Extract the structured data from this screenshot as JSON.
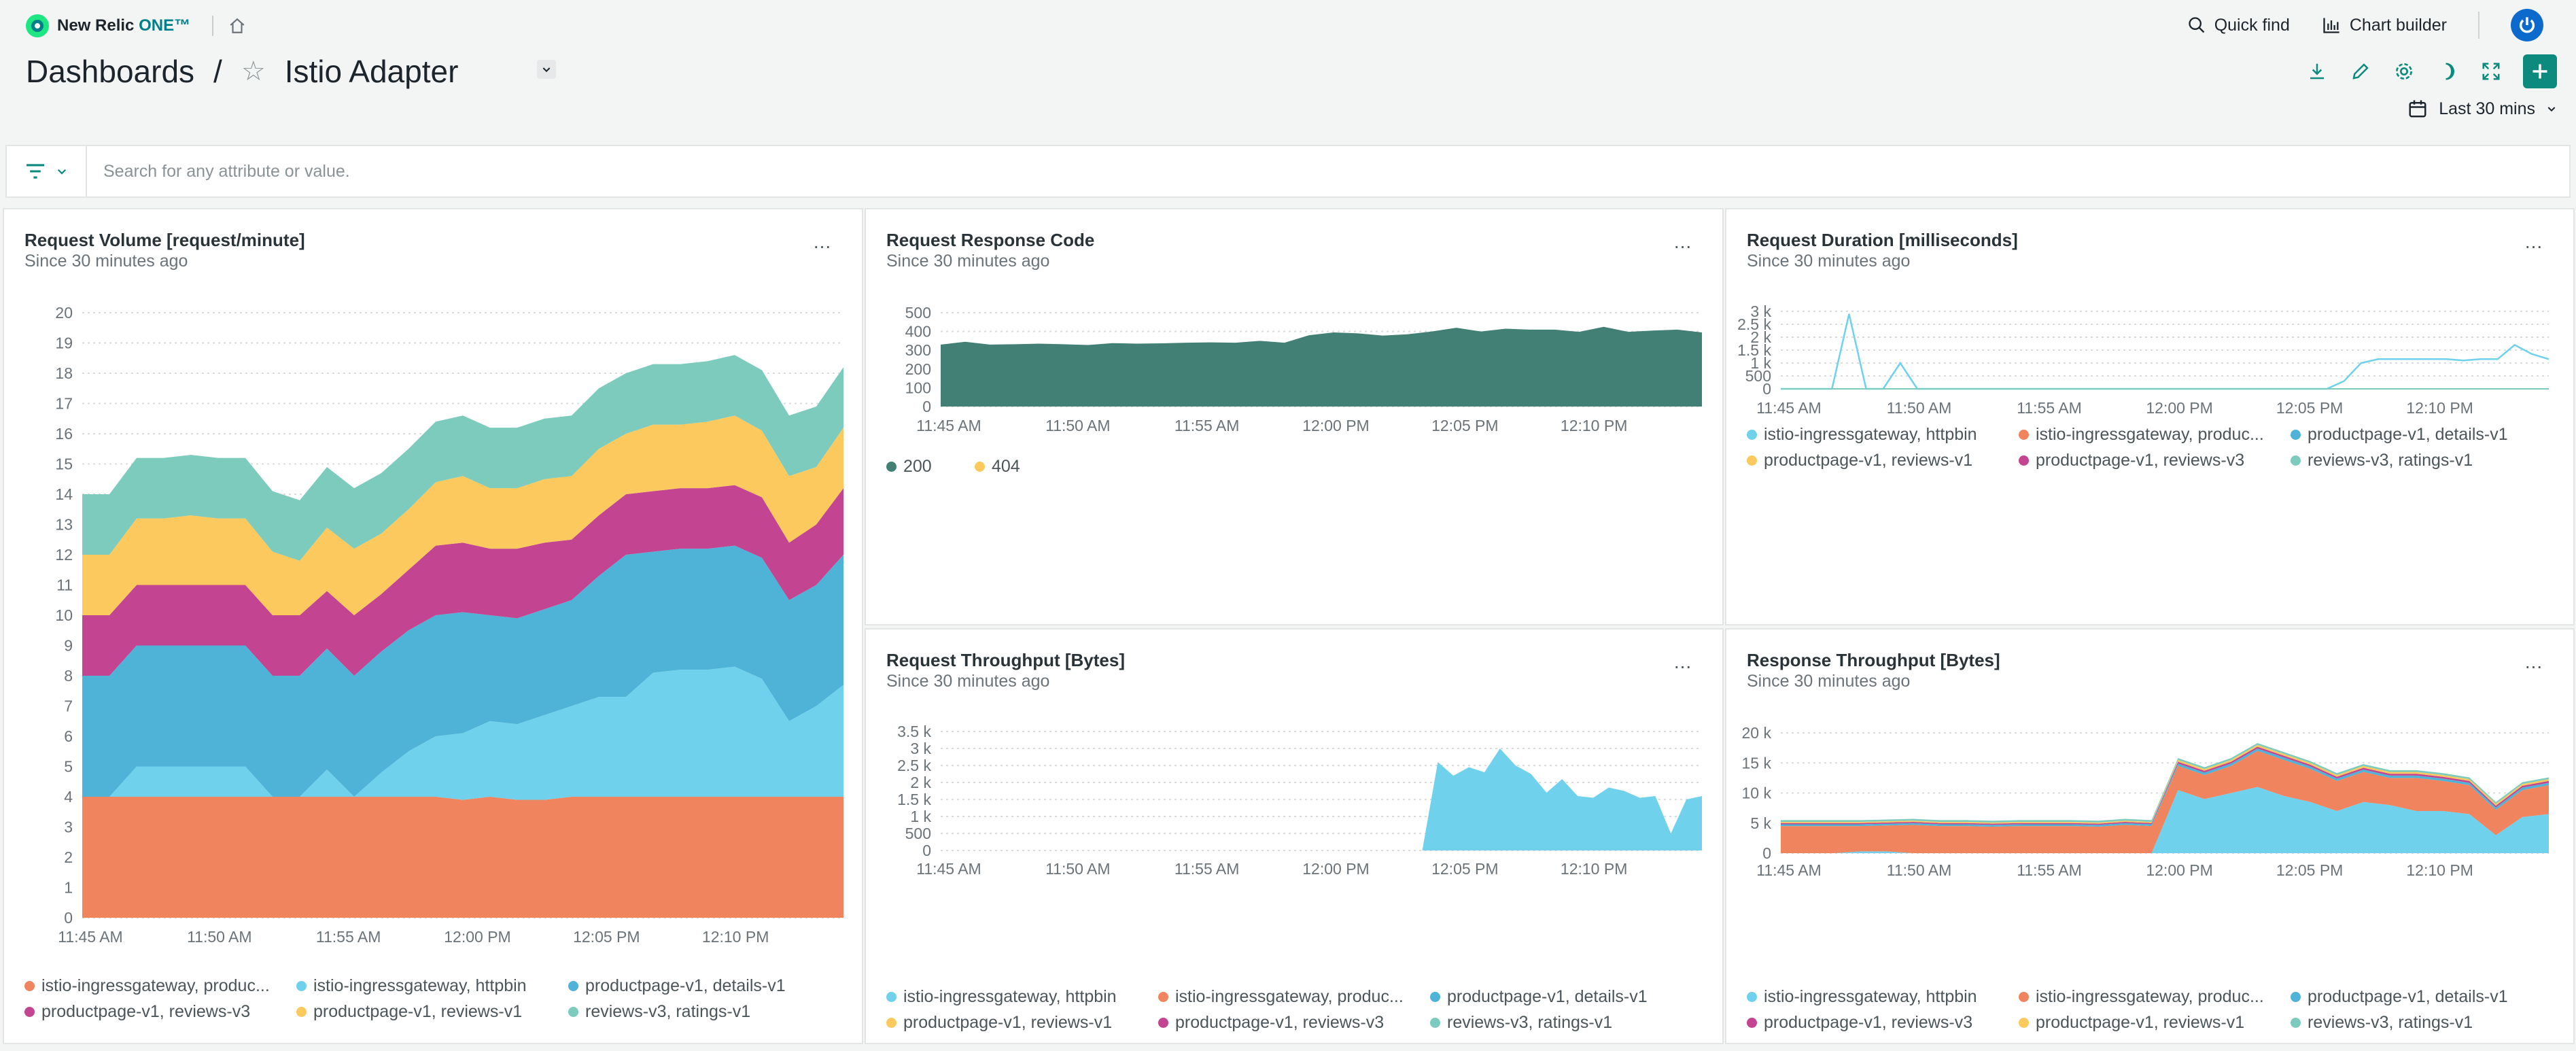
{
  "app": {
    "brand": "New Relic",
    "brand_suffix": "ONE™",
    "quick_find": "Quick find",
    "chart_builder": "Chart builder"
  },
  "breadcrumb": {
    "root": "Dashboards",
    "separator": "/",
    "title": "Istio Adapter"
  },
  "time_range": "Last 30 mins",
  "filter": {
    "placeholder": "Search for any attribute or value."
  },
  "icons": {
    "brand": "new-relic-logo",
    "home": "home-icon",
    "quick_find": "search-icon",
    "chart_builder": "chart-bar-icon",
    "power": "power-icon",
    "download": "download-icon",
    "edit": "pencil-icon",
    "settings": "gear-icon",
    "dark_mode": "moon-icon",
    "fullscreen": "expand-icon",
    "add": "plus-icon",
    "calendar": "calendar-icon",
    "filter": "filter-icon"
  },
  "colors": {
    "orange": "#f0845f",
    "light_blue": "#6fd1ec",
    "blue": "#4fb3d7",
    "magenta": "#c34490",
    "yellow": "#fbc95e",
    "teal": "#7ccbbd",
    "dark_teal": "#427f74",
    "accent": "#0c8a7d"
  },
  "times": [
    "11:45 AM",
    "11:50 AM",
    "11:55 AM",
    "12:00 PM",
    "12:05 PM",
    "12:10 PM"
  ],
  "cards": [
    {
      "id": "request-volume",
      "title": "Request Volume [request/minute]",
      "subtitle": "Since 30 minutes ago",
      "menu": "...",
      "chart_data": {
        "type": "area",
        "stacked": true,
        "ylim": [
          0,
          20
        ],
        "yticks": [
          "0",
          "1",
          "2",
          "3",
          "4",
          "5",
          "6",
          "7",
          "8",
          "9",
          "10",
          "11",
          "12",
          "13",
          "14",
          "15",
          "16",
          "17",
          "18",
          "19",
          "20"
        ],
        "x_labels": [
          "11:45 AM",
          "11:50 AM",
          "11:55 AM",
          "12:00 PM",
          "12:05 PM",
          "12:10 PM"
        ],
        "grid": true,
        "legend_position": "bottom",
        "series": [
          {
            "name": "istio-ingressgateway, produc...",
            "color": "#f0845f",
            "values": [
              4,
              4,
              4,
              4,
              4,
              4,
              4,
              4,
              4,
              4,
              4,
              4,
              4,
              4,
              3.9,
              4,
              3.9,
              3.9,
              4,
              4,
              4,
              4,
              4,
              4,
              4,
              4,
              4,
              4,
              4
            ]
          },
          {
            "name": "istio-ingressgateway, httpbin",
            "color": "#6fd1ec",
            "values": [
              0,
              0,
              1,
              1,
              1,
              1,
              1,
              0,
              0,
              0.9,
              0,
              0.8,
              1.5,
              2,
              2.2,
              2.5,
              2.5,
              2.8,
              3,
              3.3,
              3.3,
              4.1,
              4.2,
              4.2,
              4.3,
              3.9,
              2.5,
              3,
              3.7
            ]
          },
          {
            "name": "productpage-v1, details-v1",
            "color": "#4fb3d7",
            "values": [
              4,
              4,
              4,
              4,
              4,
              4,
              4,
              4,
              4,
              4,
              4,
              4,
              4,
              4,
              4,
              3.5,
              3.5,
              3.5,
              3.5,
              4,
              4.7,
              4,
              4,
              4,
              4,
              4,
              4,
              4,
              4.3
            ]
          },
          {
            "name": "productpage-v1, reviews-v3",
            "color": "#c34490",
            "values": [
              2,
              2,
              2,
              2,
              2,
              2,
              2,
              2,
              2,
              1.9,
              2,
              1.9,
              2,
              2.3,
              2.3,
              2.2,
              2.3,
              2.2,
              2,
              2,
              2,
              2,
              2,
              2,
              2,
              2,
              1.9,
              2,
              2.2
            ]
          },
          {
            "name": "productpage-v1, reviews-v1",
            "color": "#fbc95e",
            "values": [
              2,
              2,
              2.2,
              2.2,
              2.3,
              2.2,
              2.2,
              2.1,
              1.8,
              2.1,
              2.2,
              2,
              2,
              2.1,
              2.2,
              2,
              2,
              2.1,
              2.1,
              2.2,
              2,
              2.2,
              2.1,
              2.2,
              2.3,
              2.2,
              2.2,
              1.9,
              2
            ]
          },
          {
            "name": "reviews-v3, ratings-v1",
            "color": "#7ccbbd",
            "values": [
              2,
              2,
              2,
              2,
              2,
              2,
              2,
              2,
              2,
              2,
              2,
              2,
              2,
              2,
              2,
              2,
              2,
              2,
              2,
              2,
              2,
              2,
              2,
              2,
              2,
              2,
              2,
              2,
              2
            ]
          }
        ]
      }
    },
    {
      "id": "request-response-code",
      "title": "Request Response Code",
      "subtitle": "Since 30 minutes ago",
      "menu": "...",
      "chart_data": {
        "type": "area",
        "stacked": true,
        "ylim": [
          0,
          500
        ],
        "yticks": [
          "0",
          "100",
          "200",
          "300",
          "400",
          "500"
        ],
        "x_labels": [
          "11:45 AM",
          "11:50 AM",
          "11:55 AM",
          "12:00 PM",
          "12:05 PM",
          "12:10 PM"
        ],
        "grid": true,
        "legend_position": "bottom",
        "series": [
          {
            "name": "200",
            "color": "#427f74",
            "values": [
              330,
              345,
              330,
              332,
              335,
              332,
              328,
              338,
              335,
              337,
              340,
              342,
              340,
              350,
              340,
              380,
              395,
              390,
              378,
              385,
              400,
              420,
              400,
              415,
              410,
              410,
              398,
              425,
              398,
              405,
              410,
              395
            ]
          },
          {
            "name": "404",
            "color": "#fbc95e",
            "values": [
              0,
              0,
              0,
              0,
              0,
              0,
              0,
              0,
              0,
              0,
              0,
              0,
              0,
              0,
              0,
              0,
              0,
              0,
              0,
              0,
              0,
              0,
              0,
              0,
              0,
              0,
              0,
              0,
              0,
              0,
              0,
              0
            ]
          }
        ]
      }
    },
    {
      "id": "request-duration",
      "title": "Request Duration [milliseconds]",
      "subtitle": "Since 30 minutes ago",
      "menu": "...",
      "chart_data": {
        "type": "line",
        "ylim": [
          0,
          3000
        ],
        "yticks": [
          "0",
          "500",
          "1 k",
          "1.5 k",
          "2 k",
          "2.5 k",
          "3 k"
        ],
        "x_labels": [
          "11:45 AM",
          "11:50 AM",
          "11:55 AM",
          "12:00 PM",
          "12:05 PM",
          "12:10 PM"
        ],
        "grid": true,
        "legend_position": "bottom",
        "series": [
          {
            "name": "istio-ingressgateway, httpbin",
            "color": "#6fd1ec",
            "values": [
              0,
              0,
              0,
              0,
              2900,
              0,
              0,
              1000,
              0,
              0,
              0,
              0,
              0,
              0,
              0,
              0,
              0,
              0,
              0,
              0,
              0,
              0,
              0,
              0,
              0,
              0,
              0,
              0,
              0,
              0,
              0,
              0,
              0,
              300,
              1000,
              1150,
              1150,
              1150,
              1150,
              1150,
              1100,
              1150,
              1150,
              1700,
              1350,
              1150
            ]
          },
          {
            "name": "istio-ingressgateway, produc...",
            "color": "#f0845f",
            "values": []
          },
          {
            "name": "productpage-v1, details-v1",
            "color": "#4fb3d7",
            "values": []
          },
          {
            "name": "productpage-v1, reviews-v1",
            "color": "#fbc95e",
            "values": []
          },
          {
            "name": "productpage-v1, reviews-v3",
            "color": "#c34490",
            "values": []
          },
          {
            "name": "reviews-v3, ratings-v1",
            "color": "#7ccbbd",
            "values": []
          }
        ]
      }
    },
    {
      "id": "request-throughput",
      "title": "Request Throughput [Bytes]",
      "subtitle": "Since 30 minutes ago",
      "menu": "...",
      "chart_data": {
        "type": "area",
        "ylim": [
          0,
          3500
        ],
        "yticks": [
          "0",
          "500",
          "1 k",
          "1.5 k",
          "2 k",
          "2.5 k",
          "3 k",
          "3.5 k"
        ],
        "x_labels": [
          "11:45 AM",
          "11:50 AM",
          "11:55 AM",
          "12:00 PM",
          "12:05 PM",
          "12:10 PM"
        ],
        "grid": true,
        "legend_position": "bottom",
        "series": [
          {
            "name": "istio-ingressgateway, httpbin",
            "color": "#6fd1ec",
            "values": [
              0,
              0,
              0,
              0,
              0,
              0,
              0,
              0,
              0,
              0,
              0,
              0,
              0,
              0,
              0,
              0,
              0,
              0,
              0,
              0,
              0,
              0,
              0,
              0,
              0,
              0,
              0,
              0,
              0,
              0,
              0,
              0,
              2600,
              2200,
              2450,
              2300,
              3000,
              2500,
              2250,
              1700,
              2100,
              1600,
              1550,
              1850,
              1750,
              1550,
              1600,
              500,
              1500,
              1600
            ]
          },
          {
            "name": "istio-ingressgateway, produc...",
            "color": "#f0845f",
            "values": []
          },
          {
            "name": "productpage-v1, details-v1",
            "color": "#4fb3d7",
            "values": []
          },
          {
            "name": "productpage-v1, reviews-v1",
            "color": "#fbc95e",
            "values": []
          },
          {
            "name": "productpage-v1, reviews-v3",
            "color": "#c34490",
            "values": []
          },
          {
            "name": "reviews-v3, ratings-v1",
            "color": "#7ccbbd",
            "values": []
          }
        ]
      }
    },
    {
      "id": "response-throughput",
      "title": "Response Throughput [Bytes]",
      "subtitle": "Since 30 minutes ago",
      "menu": "...",
      "chart_data": {
        "type": "area",
        "stacked": true,
        "ylim": [
          0,
          20000
        ],
        "yticks": [
          "0",
          "5 k",
          "10 k",
          "15 k",
          "20 k"
        ],
        "x_labels": [
          "11:45 AM",
          "11:50 AM",
          "11:55 AM",
          "12:00 PM",
          "12:05 PM",
          "12:10 PM"
        ],
        "grid": true,
        "legend_position": "bottom",
        "series": [
          {
            "name": "istio-ingressgateway, httpbin",
            "color": "#6fd1ec",
            "values": [
              0,
              0,
              0,
              300,
              300,
              0,
              0,
              0,
              0,
              0,
              0,
              0,
              0,
              0,
              0,
              10500,
              9000,
              10000,
              11000,
              9500,
              8500,
              7000,
              8500,
              8000,
              7000,
              7000,
              6500,
              3000,
              6000,
              6500
            ]
          },
          {
            "name": "istio-ingressgateway, produc...",
            "color": "#f0845f",
            "values": [
              4500,
              4500,
              4500,
              4200,
              4300,
              4700,
              4500,
              4500,
              4400,
              4500,
              4500,
              4500,
              4400,
              4700,
              4500,
              4000,
              4000,
              4500,
              6000,
              6000,
              5500,
              5000,
              5000,
              4500,
              5500,
              5000,
              4800,
              4200,
              4500,
              4800
            ]
          },
          {
            "name": "productpage-v1, details-v1",
            "color": "#4fb3d7",
            "values": [
              300,
              300,
              300,
              300,
              300,
              300,
              300,
              300,
              300,
              300,
              300,
              300,
              300,
              300,
              300,
              400,
              400,
              400,
              400,
              400,
              400,
              400,
              400,
              400,
              400,
              400,
              400,
              400,
              400,
              400
            ]
          },
          {
            "name": "productpage-v1, reviews-v3",
            "color": "#c34490",
            "values": [
              200,
              200,
              200,
              200,
              200,
              200,
              200,
              200,
              200,
              200,
              200,
              200,
              200,
              200,
              200,
              300,
              300,
              300,
              300,
              300,
              300,
              300,
              300,
              300,
              300,
              300,
              300,
              300,
              300,
              300
            ]
          },
          {
            "name": "productpage-v1, reviews-v1",
            "color": "#fbc95e",
            "values": [
              200,
              200,
              200,
              200,
              200,
              200,
              200,
              200,
              200,
              200,
              200,
              200,
              200,
              200,
              200,
              300,
              300,
              300,
              300,
              300,
              300,
              300,
              300,
              300,
              300,
              300,
              300,
              300,
              300,
              300
            ]
          },
          {
            "name": "reviews-v3, ratings-v1",
            "color": "#7ccbbd",
            "values": [
              300,
              300,
              300,
              300,
              300,
              300,
              300,
              300,
              300,
              300,
              300,
              300,
              300,
              300,
              300,
              300,
              300,
              300,
              300,
              300,
              300,
              300,
              300,
              300,
              300,
              300,
              300,
              300,
              300,
              300
            ]
          }
        ]
      }
    }
  ]
}
